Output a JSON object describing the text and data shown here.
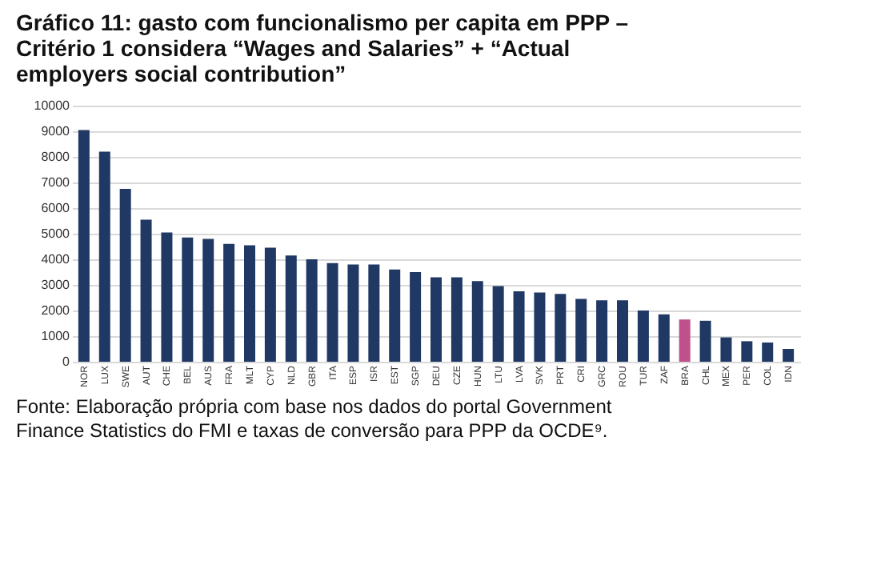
{
  "chart_data": {
    "type": "bar",
    "title": "Gráfico 11: gasto com funcionalismo per capita em PPP – Critério 1 considera “Wages and Salaries” + “Actual employers social contribution”",
    "annotations": [
      "Fonte: Elaboração própria com base nos dados do portal Government Finance Statistics do FMI e taxas de conversão para PPP da OCDE⁹."
    ],
    "categories": [
      "NOR",
      "LUX",
      "SWE",
      "AUT",
      "CHE",
      "BEL",
      "AUS",
      "FRA",
      "MLT",
      "CYP",
      "NLD",
      "GBR",
      "ITA",
      "ESP",
      "ISR",
      "EST",
      "SGP",
      "DEU",
      "CZE",
      "HUN",
      "LTU",
      "LVA",
      "SVK",
      "PRT",
      "CRI",
      "GRC",
      "ROU",
      "TUR",
      "ZAF",
      "BRA",
      "CHL",
      "MEX",
      "PER",
      "COL",
      "IDN"
    ],
    "values": [
      9050,
      8200,
      6750,
      5550,
      5050,
      4850,
      4800,
      4600,
      4550,
      4450,
      4150,
      4000,
      3850,
      3800,
      3800,
      3600,
      3500,
      3300,
      3300,
      3150,
      2950,
      2750,
      2700,
      2650,
      2450,
      2400,
      2400,
      2000,
      1850,
      1650,
      1600,
      950,
      800,
      750,
      500
    ],
    "colors": [
      "#203864",
      "#203864",
      "#203864",
      "#203864",
      "#203864",
      "#203864",
      "#203864",
      "#203864",
      "#203864",
      "#203864",
      "#203864",
      "#203864",
      "#203864",
      "#203864",
      "#203864",
      "#203864",
      "#203864",
      "#203864",
      "#203864",
      "#203864",
      "#203864",
      "#203864",
      "#203864",
      "#203864",
      "#203864",
      "#203864",
      "#203864",
      "#203864",
      "#203864",
      "#c0508c",
      "#203864",
      "#203864",
      "#203864",
      "#203864",
      "#203864"
    ],
    "ylim": [
      0,
      10000
    ],
    "yticks": [
      0,
      1000,
      2000,
      3000,
      4000,
      5000,
      6000,
      7000,
      8000,
      9000,
      10000
    ],
    "grid": "y"
  }
}
